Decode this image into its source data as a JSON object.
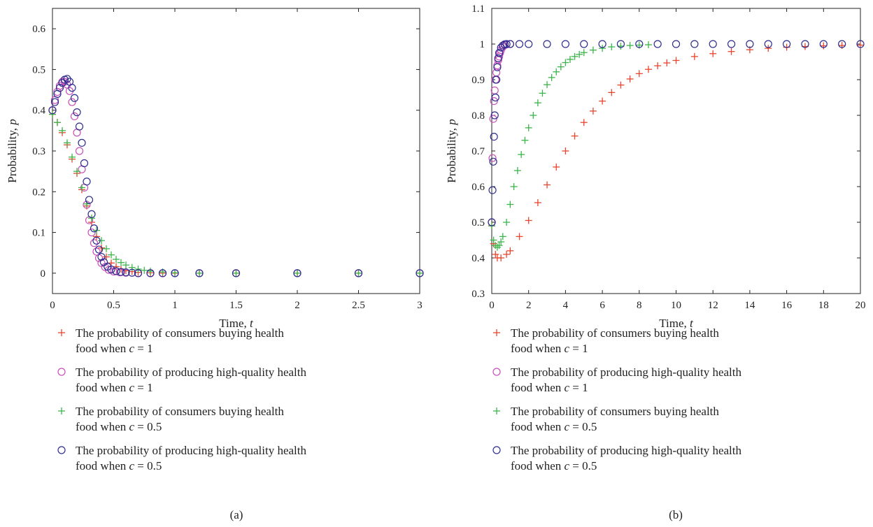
{
  "chart_data": [
    {
      "type": "scatter",
      "caption": "(a)",
      "xlabel": "Time, ",
      "xlabel_var": "t",
      "ylabel": "Probability, ",
      "ylabel_var": "p",
      "xlim": [
        0,
        3
      ],
      "ylim": [
        -0.05,
        0.65
      ],
      "xticks": [
        0,
        0.5,
        1,
        1.5,
        2,
        2.5,
        3
      ],
      "xtick_labels": [
        "0",
        "0.5",
        "1",
        "1.5",
        "2",
        "2.5",
        "3"
      ],
      "yticks": [
        0,
        0.1,
        0.2,
        0.3,
        0.4,
        0.5,
        0.6
      ],
      "ytick_labels": [
        "0",
        "0.1",
        "0.2",
        "0.3",
        "0.4",
        "0.5",
        "0.6"
      ],
      "grid": false,
      "legend_position": "below",
      "series": [
        {
          "name": "The probability of consumers buying health food when c=1",
          "legend_lines": [
            "The probability of consumers buying health",
            "food when ",
            "c",
            " = 1"
          ],
          "marker": "plus",
          "color": "#e8462e",
          "x": [
            0,
            0.04,
            0.08,
            0.12,
            0.16,
            0.2,
            0.24,
            0.28,
            0.32,
            0.36,
            0.4,
            0.44,
            0.48,
            0.52,
            0.56,
            0.6,
            0.65,
            0.7,
            0.8,
            0.9,
            1.0,
            1.2,
            1.5,
            2.0,
            2.5,
            3.0
          ],
          "y": [
            0.39,
            0.37,
            0.345,
            0.315,
            0.28,
            0.245,
            0.205,
            0.165,
            0.125,
            0.09,
            0.062,
            0.04,
            0.025,
            0.016,
            0.01,
            0.006,
            0.004,
            0.002,
            0.001,
            0,
            0,
            0,
            0,
            0,
            0,
            0
          ]
        },
        {
          "name": "The probability of producing high-quality health food when c=1",
          "legend_lines": [
            "The probability of producing high-quality health",
            "food when ",
            "c",
            " = 1"
          ],
          "marker": "circle",
          "color": "#c94fb8",
          "x": [
            0,
            0.02,
            0.04,
            0.06,
            0.08,
            0.1,
            0.12,
            0.14,
            0.16,
            0.18,
            0.2,
            0.22,
            0.24,
            0.26,
            0.28,
            0.3,
            0.32,
            0.34,
            0.36,
            0.38,
            0.4,
            0.43,
            0.46,
            0.5,
            0.55,
            0.6,
            0.7,
            0.8,
            0.9,
            1.0,
            1.2,
            1.5,
            2.0,
            2.5,
            3.0
          ],
          "y": [
            0.4,
            0.425,
            0.445,
            0.46,
            0.47,
            0.47,
            0.463,
            0.447,
            0.42,
            0.385,
            0.345,
            0.3,
            0.255,
            0.21,
            0.168,
            0.13,
            0.1,
            0.074,
            0.053,
            0.037,
            0.025,
            0.015,
            0.008,
            0.004,
            0.002,
            0.001,
            0,
            0,
            0,
            0,
            0,
            0,
            0,
            0,
            0
          ]
        },
        {
          "name": "The probability of consumers buying health food when c=0.5",
          "legend_lines": [
            "The probability of consumers buying health",
            "food when ",
            "c",
            " = 0.5"
          ],
          "marker": "plus",
          "color": "#3cb54a",
          "x": [
            0,
            0.04,
            0.08,
            0.12,
            0.16,
            0.2,
            0.24,
            0.28,
            0.32,
            0.36,
            0.4,
            0.44,
            0.48,
            0.52,
            0.56,
            0.6,
            0.65,
            0.7,
            0.75,
            0.8,
            0.9,
            1.0,
            1.2,
            1.5,
            2.0,
            2.5,
            3.0
          ],
          "y": [
            0.39,
            0.37,
            0.35,
            0.32,
            0.285,
            0.25,
            0.21,
            0.17,
            0.135,
            0.105,
            0.08,
            0.06,
            0.045,
            0.034,
            0.026,
            0.02,
            0.014,
            0.01,
            0.007,
            0.005,
            0.003,
            0.001,
            0,
            0,
            0,
            0,
            0
          ]
        },
        {
          "name": "The probability of producing high-quality health food when c=0.5",
          "legend_lines": [
            "The probability of producing high-quality health",
            "food when ",
            "c",
            " = 0.5"
          ],
          "marker": "circle",
          "color": "#2e2d8f",
          "x": [
            0,
            0.02,
            0.04,
            0.06,
            0.08,
            0.1,
            0.12,
            0.14,
            0.16,
            0.18,
            0.2,
            0.22,
            0.24,
            0.26,
            0.28,
            0.3,
            0.32,
            0.34,
            0.36,
            0.38,
            0.4,
            0.42,
            0.45,
            0.48,
            0.52,
            0.56,
            0.6,
            0.65,
            0.7,
            0.8,
            0.9,
            1.0,
            1.2,
            1.5,
            2.0,
            2.5,
            3.0
          ],
          "y": [
            0.4,
            0.42,
            0.44,
            0.455,
            0.467,
            0.475,
            0.477,
            0.47,
            0.455,
            0.43,
            0.395,
            0.36,
            0.32,
            0.27,
            0.225,
            0.18,
            0.145,
            0.11,
            0.08,
            0.058,
            0.04,
            0.027,
            0.016,
            0.009,
            0.005,
            0.003,
            0.002,
            0.001,
            0,
            0,
            0,
            0,
            0,
            0,
            0,
            0,
            0
          ]
        }
      ]
    },
    {
      "type": "scatter",
      "caption": "(b)",
      "xlabel": "Time, ",
      "xlabel_var": "t",
      "ylabel": "Probability, ",
      "ylabel_var": "p",
      "xlim": [
        0,
        20
      ],
      "ylim": [
        0.3,
        1.1
      ],
      "xticks": [
        0,
        2,
        4,
        6,
        8,
        10,
        12,
        14,
        16,
        18,
        20
      ],
      "xtick_labels": [
        "0",
        "2",
        "4",
        "6",
        "8",
        "10",
        "12",
        "14",
        "16",
        "18",
        "20"
      ],
      "yticks": [
        0.3,
        0.4,
        0.5,
        0.6,
        0.7,
        0.8,
        0.9,
        1.0,
        1.1
      ],
      "ytick_labels": [
        "0.3",
        "0.4",
        "0.5",
        "0.6",
        "0.7",
        "0.8",
        "0.9",
        "1",
        "1.1"
      ],
      "grid": false,
      "legend_position": "below",
      "series": [
        {
          "name": "The probability of consumers buying health food when c=1",
          "legend_lines": [
            "The probability of consumers buying health",
            "food when ",
            "c",
            " = 1"
          ],
          "marker": "plus",
          "color": "#e8462e",
          "x": [
            0,
            0.1,
            0.2,
            0.3,
            0.5,
            0.8,
            1,
            1.5,
            2,
            2.5,
            3,
            3.5,
            4,
            4.5,
            5,
            5.5,
            6,
            6.5,
            7,
            7.5,
            8,
            8.5,
            9,
            9.5,
            10,
            11,
            12,
            13,
            14,
            15,
            16,
            17,
            18,
            19,
            20
          ],
          "y": [
            0.49,
            0.44,
            0.41,
            0.4,
            0.4,
            0.41,
            0.42,
            0.46,
            0.505,
            0.555,
            0.605,
            0.655,
            0.7,
            0.742,
            0.78,
            0.812,
            0.84,
            0.864,
            0.885,
            0.902,
            0.917,
            0.929,
            0.939,
            0.947,
            0.954,
            0.965,
            0.973,
            0.979,
            0.984,
            0.988,
            0.991,
            0.993,
            0.995,
            0.996,
            0.997
          ]
        },
        {
          "name": "The probability of producing high-quality health food when c=1",
          "legend_lines": [
            "The probability of producing high-quality health",
            "food when ",
            "c",
            " = 1"
          ],
          "marker": "circle",
          "color": "#c94fb8",
          "x": [
            0,
            0.04,
            0.08,
            0.12,
            0.16,
            0.2,
            0.25,
            0.3,
            0.35,
            0.4,
            0.45,
            0.5,
            0.6,
            0.7,
            0.8,
            1.0
          ],
          "y": [
            0.5,
            0.68,
            0.79,
            0.84,
            0.87,
            0.9,
            0.92,
            0.94,
            0.955,
            0.965,
            0.975,
            0.983,
            0.992,
            0.997,
            0.999,
            1.0
          ]
        },
        {
          "name": "The probability of consumers buying health food when c=0.5",
          "legend_lines": [
            "The probability of consumers buying health",
            "food when ",
            "c",
            " = 0.5"
          ],
          "marker": "plus",
          "color": "#3cb54a",
          "x": [
            0,
            0.1,
            0.2,
            0.3,
            0.4,
            0.5,
            0.6,
            0.8,
            1,
            1.2,
            1.4,
            1.6,
            1.8,
            2,
            2.25,
            2.5,
            2.75,
            3,
            3.25,
            3.5,
            3.75,
            4,
            4.25,
            4.5,
            4.75,
            5,
            5.5,
            6,
            6.5,
            7,
            7.5,
            8,
            8.5
          ],
          "y": [
            0.49,
            0.45,
            0.435,
            0.43,
            0.435,
            0.445,
            0.46,
            0.5,
            0.55,
            0.6,
            0.645,
            0.69,
            0.73,
            0.765,
            0.8,
            0.835,
            0.862,
            0.886,
            0.906,
            0.922,
            0.936,
            0.948,
            0.957,
            0.965,
            0.971,
            0.976,
            0.983,
            0.988,
            0.992,
            0.994,
            0.996,
            0.997,
            0.998
          ]
        },
        {
          "name": "The probability of producing high-quality health food when c=0.5",
          "legend_lines": [
            "The probability of producing high-quality health",
            "food when ",
            "c",
            " = 0.5"
          ],
          "marker": "circle",
          "color": "#2e2d8f",
          "x": [
            0,
            0.04,
            0.08,
            0.12,
            0.16,
            0.2,
            0.25,
            0.3,
            0.35,
            0.4,
            0.5,
            0.6,
            0.7,
            0.8,
            1,
            1.5,
            2,
            3,
            4,
            5,
            6,
            7,
            8,
            9,
            10,
            11,
            12,
            13,
            14,
            15,
            16,
            17,
            18,
            19,
            20
          ],
          "y": [
            0.5,
            0.59,
            0.67,
            0.74,
            0.8,
            0.85,
            0.9,
            0.935,
            0.96,
            0.975,
            0.99,
            0.996,
            0.999,
            1.0,
            1.0,
            1.0,
            1.0,
            1.0,
            1.0,
            1.0,
            1.0,
            1.0,
            1.0,
            1.0,
            1.0,
            1.0,
            1.0,
            1.0,
            1.0,
            1.0,
            1.0,
            1.0,
            1.0,
            1.0,
            1.0
          ]
        }
      ]
    }
  ]
}
